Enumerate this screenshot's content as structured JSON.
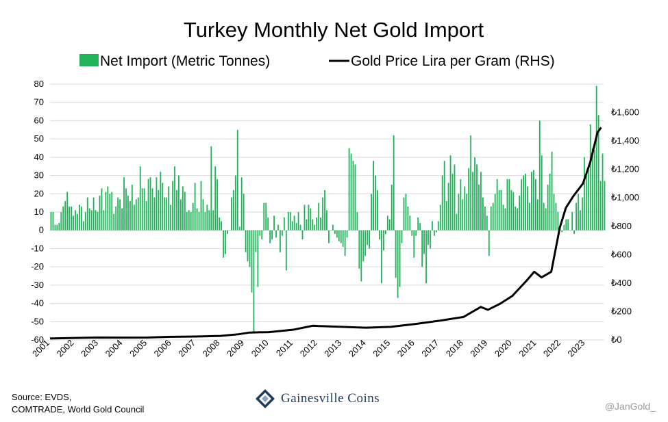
{
  "chart_data": {
    "type": "bar+line",
    "title": "Turkey Monthly Net Gold Import",
    "series": [
      {
        "name": "Net Import (Metric Tonnes)",
        "kind": "bar",
        "axis": "left",
        "color": "#22b35a"
      },
      {
        "name": "Gold Price Lira per Gram (RHS)",
        "kind": "line",
        "axis": "right",
        "color": "#000000"
      }
    ],
    "legend_position": "top-center",
    "grid": true,
    "x_range": [
      2001.0,
      2023.75
    ],
    "x_ticks": [
      "2001",
      "2002",
      "2003",
      "2004",
      "2005",
      "2006",
      "2007",
      "2008",
      "2009",
      "2010",
      "2011",
      "2012",
      "2013",
      "2014",
      "2015",
      "2016",
      "2017",
      "2018",
      "2019",
      "2020",
      "2021",
      "2022",
      "2023"
    ],
    "y_left": {
      "ylim": [
        -60,
        80
      ],
      "ticks": [
        "80",
        "70",
        "60",
        "50",
        "40",
        "30",
        "20",
        "10",
        "0",
        "-10",
        "-20",
        "-30",
        "-40",
        "-50",
        "-60"
      ]
    },
    "y_right": {
      "ylim": [
        0,
        1800
      ],
      "ticks": [
        "₺1,600",
        "₺1,400",
        "₺1,200",
        "₺1,000",
        "₺800",
        "₺600",
        "₺400",
        "₺200",
        "₺0"
      ]
    },
    "net_import_monthly": [
      10,
      10,
      3,
      3,
      4,
      10,
      13,
      16,
      21,
      13,
      13,
      8,
      11,
      9,
      14,
      13,
      5,
      10,
      18,
      12,
      11,
      18,
      11,
      10,
      19,
      23,
      11,
      21,
      24,
      20,
      21,
      9,
      13,
      18,
      17,
      12,
      29,
      23,
      19,
      16,
      25,
      14,
      17,
      18,
      35,
      23,
      23,
      16,
      28,
      29,
      23,
      18,
      29,
      22,
      32,
      26,
      18,
      18,
      24,
      14,
      27,
      35,
      22,
      30,
      17,
      24,
      21,
      10,
      11,
      10,
      15,
      26,
      12,
      10,
      27,
      17,
      10,
      14,
      11,
      46,
      11,
      35,
      28,
      7,
      5,
      -15,
      -13,
      -2,
      0,
      18,
      22,
      30,
      55,
      2,
      29,
      20,
      -12,
      -17,
      -20,
      -34,
      -56,
      -12,
      -31,
      -3,
      -5,
      15,
      15,
      7,
      -7,
      -5,
      8,
      -4,
      3,
      -12,
      -3,
      7,
      -22,
      10,
      10,
      5,
      8,
      4,
      10,
      3,
      -5,
      14,
      6,
      14,
      12,
      6,
      3,
      7,
      15,
      7,
      18,
      22,
      11,
      -7,
      0,
      3,
      -2,
      -4,
      -6,
      -7,
      -9,
      -14,
      -4,
      45,
      42,
      38,
      36,
      10,
      -21,
      -28,
      -17,
      -14,
      -8,
      -10,
      20,
      38,
      30,
      22,
      -5,
      -29,
      -11,
      -2,
      8,
      6,
      25,
      52,
      -26,
      -37,
      -31,
      -7,
      18,
      20,
      13,
      8,
      -3,
      -15,
      -3,
      7,
      4,
      -20,
      -13,
      -29,
      -8,
      -10,
      5,
      -3,
      -1,
      5,
      14,
      30,
      38,
      16,
      26,
      41,
      31,
      36,
      9,
      20,
      28,
      17,
      24,
      20,
      34,
      52,
      32,
      40,
      36,
      25,
      32,
      18,
      13,
      8,
      -14,
      13,
      15,
      20,
      28,
      22,
      22,
      14,
      12,
      28,
      28,
      22,
      21,
      13,
      12,
      19,
      28,
      30,
      31,
      24,
      15,
      32,
      33,
      28,
      17,
      60,
      41,
      15,
      12,
      25,
      31,
      43,
      20,
      15,
      10,
      1,
      -1,
      3,
      6,
      6,
      0,
      10,
      -2,
      15,
      20,
      11,
      18,
      40,
      30,
      35,
      58,
      45,
      44,
      79,
      63,
      27,
      42,
      27
    ],
    "gold_price_try_per_gram": [
      {
        "x": 2001.0,
        "y": 10
      },
      {
        "x": 2002.0,
        "y": 14
      },
      {
        "x": 2003.0,
        "y": 17
      },
      {
        "x": 2004.0,
        "y": 16
      },
      {
        "x": 2005.0,
        "y": 17
      },
      {
        "x": 2006.0,
        "y": 22
      },
      {
        "x": 2007.0,
        "y": 24
      },
      {
        "x": 2008.0,
        "y": 28
      },
      {
        "x": 2008.75,
        "y": 40
      },
      {
        "x": 2009.2,
        "y": 52
      },
      {
        "x": 2010.0,
        "y": 55
      },
      {
        "x": 2011.0,
        "y": 72
      },
      {
        "x": 2011.8,
        "y": 100
      },
      {
        "x": 2012.0,
        "y": 98
      },
      {
        "x": 2013.0,
        "y": 92
      },
      {
        "x": 2014.0,
        "y": 86
      },
      {
        "x": 2015.0,
        "y": 92
      },
      {
        "x": 2016.0,
        "y": 112
      },
      {
        "x": 2017.0,
        "y": 135
      },
      {
        "x": 2018.0,
        "y": 162
      },
      {
        "x": 2018.7,
        "y": 232
      },
      {
        "x": 2019.0,
        "y": 212
      },
      {
        "x": 2019.5,
        "y": 255
      },
      {
        "x": 2020.0,
        "y": 310
      },
      {
        "x": 2020.6,
        "y": 420
      },
      {
        "x": 2020.9,
        "y": 480
      },
      {
        "x": 2021.2,
        "y": 440
      },
      {
        "x": 2021.6,
        "y": 480
      },
      {
        "x": 2021.95,
        "y": 790
      },
      {
        "x": 2022.2,
        "y": 930
      },
      {
        "x": 2022.5,
        "y": 1010
      },
      {
        "x": 2022.9,
        "y": 1100
      },
      {
        "x": 2023.2,
        "y": 1250
      },
      {
        "x": 2023.5,
        "y": 1460
      },
      {
        "x": 2023.65,
        "y": 1495
      }
    ]
  },
  "footer": {
    "source_line1": "Source: EVDS,",
    "source_line2": "COMTRADE, World Gold Council",
    "brand": "Gainesville Coins",
    "handle": "@JanGold_"
  }
}
